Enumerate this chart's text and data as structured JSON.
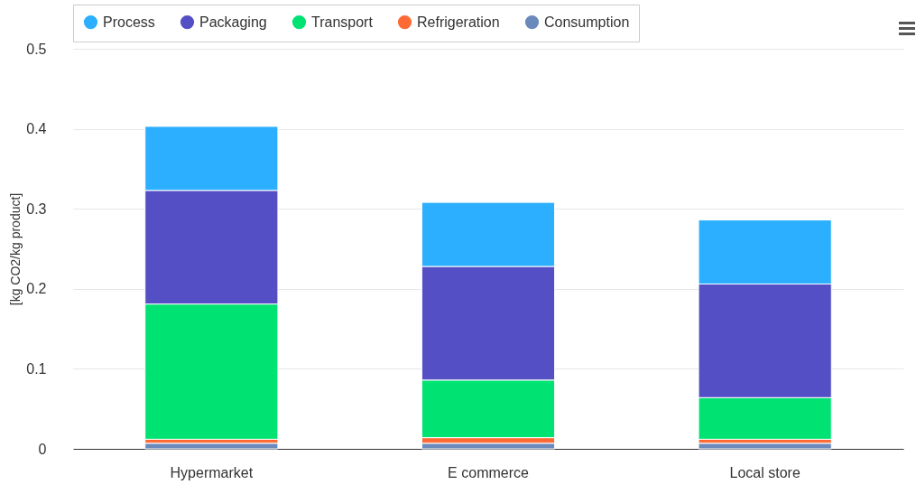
{
  "chart_data": {
    "type": "bar",
    "stacked": true,
    "ylabel": "[kg CO2/kg product]",
    "categories": [
      "Hypermarket",
      "E commerce",
      "Local store"
    ],
    "series": [
      {
        "name": "Consumption",
        "color": "#6b8abc",
        "values": [
          0.007,
          0.007,
          0.007
        ]
      },
      {
        "name": "Refrigeration",
        "color": "#fe6a35",
        "values": [
          0.005,
          0.007,
          0.005
        ]
      },
      {
        "name": "Transport",
        "color": "#00e272",
        "values": [
          0.169,
          0.072,
          0.052
        ]
      },
      {
        "name": "Packaging",
        "color": "#544fc5",
        "values": [
          0.142,
          0.142,
          0.142
        ]
      },
      {
        "name": "Process",
        "color": "#2caffe",
        "values": [
          0.08,
          0.08,
          0.08
        ]
      }
    ],
    "ylim": [
      0,
      0.5
    ],
    "yticks": [
      0,
      0.1,
      0.2,
      0.3,
      0.4,
      0.5
    ],
    "grid": "y",
    "legend": "top"
  }
}
